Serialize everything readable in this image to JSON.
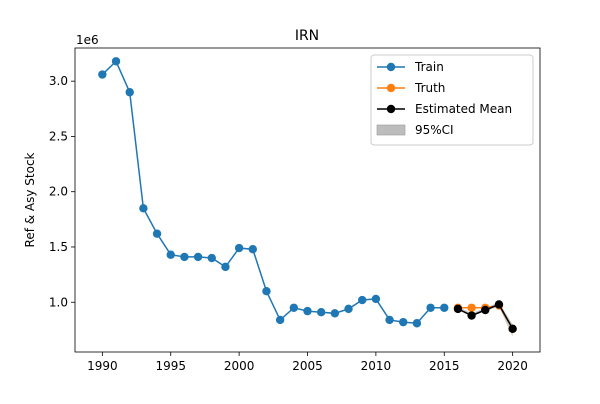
{
  "chart_data": {
    "type": "line",
    "title": "IRN",
    "xlabel": "",
    "ylabel": "Ref & Asy Stock",
    "y_offset_label": "1e6",
    "xlim": [
      1988,
      2022
    ],
    "ylim": [
      0.55,
      3.3
    ],
    "x_ticks": [
      1990,
      1995,
      2000,
      2005,
      2010,
      2015,
      2020
    ],
    "y_ticks": [
      1.0,
      1.5,
      2.0,
      2.5,
      3.0
    ],
    "y_tick_labels": [
      "1.0",
      "1.5",
      "2.0",
      "2.5",
      "3.0"
    ],
    "grid": false,
    "legend_position": "top-right",
    "series": [
      {
        "name": "Train",
        "color": "#1f77b4",
        "x": [
          1990,
          1991,
          1992,
          1993,
          1994,
          1995,
          1996,
          1997,
          1998,
          1999,
          2000,
          2001,
          2002,
          2003,
          2004,
          2005,
          2006,
          2007,
          2008,
          2009,
          2010,
          2011,
          2012,
          2013,
          2014,
          2015
        ],
        "y": [
          3.06,
          3.18,
          2.9,
          1.85,
          1.62,
          1.43,
          1.41,
          1.41,
          1.4,
          1.32,
          1.49,
          1.48,
          1.1,
          0.84,
          0.95,
          0.92,
          0.91,
          0.9,
          0.94,
          1.02,
          1.03,
          0.84,
          0.82,
          0.81,
          0.95,
          0.95
        ]
      },
      {
        "name": "Truth",
        "color": "#ff7f0e",
        "x": [
          2016,
          2017,
          2018,
          2019,
          2020
        ],
        "y": [
          0.95,
          0.95,
          0.95,
          0.97,
          0.76
        ]
      },
      {
        "name": "Estimated Mean",
        "color": "#000000",
        "x": [
          2016,
          2017,
          2018,
          2019,
          2020
        ],
        "y": [
          0.94,
          0.88,
          0.93,
          0.98,
          0.76
        ]
      }
    ],
    "ci": {
      "name": "95%CI",
      "color": "#bdbdbd",
      "x": [
        2016,
        2017,
        2018,
        2019,
        2020
      ],
      "lower": [
        0.93,
        0.87,
        0.92,
        0.96,
        0.69
      ],
      "upper": [
        0.96,
        0.9,
        0.95,
        1.0,
        0.8
      ]
    }
  }
}
